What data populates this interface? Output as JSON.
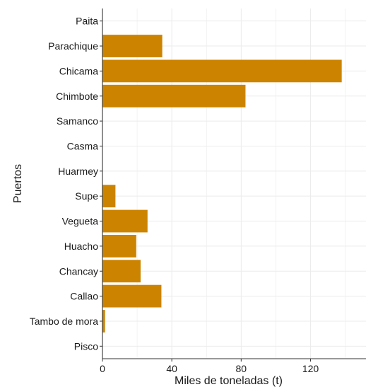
{
  "chart_data": {
    "type": "bar",
    "orientation": "horizontal",
    "title": "",
    "xlabel": "Miles de toneladas (t)",
    "ylabel": "Puertos",
    "categories": [
      "Paita",
      "Parachique",
      "Chicama",
      "Chimbote",
      "Samanco",
      "Casma",
      "Huarmey",
      "Supe",
      "Vegueta",
      "Huacho",
      "Chancay",
      "Callao",
      "Tambo de mora",
      "Pisco"
    ],
    "values": [
      0,
      34.5,
      138,
      82.5,
      0,
      0,
      0,
      7.5,
      26,
      19.5,
      22,
      34,
      1.5,
      0
    ],
    "xlim": [
      0,
      152
    ],
    "xticks": [
      0,
      40,
      80,
      120
    ],
    "grid": true,
    "legend": "none",
    "bar_color": "#cc8400",
    "gridline_color": "#ebebeb",
    "axis_color": "#333333"
  }
}
